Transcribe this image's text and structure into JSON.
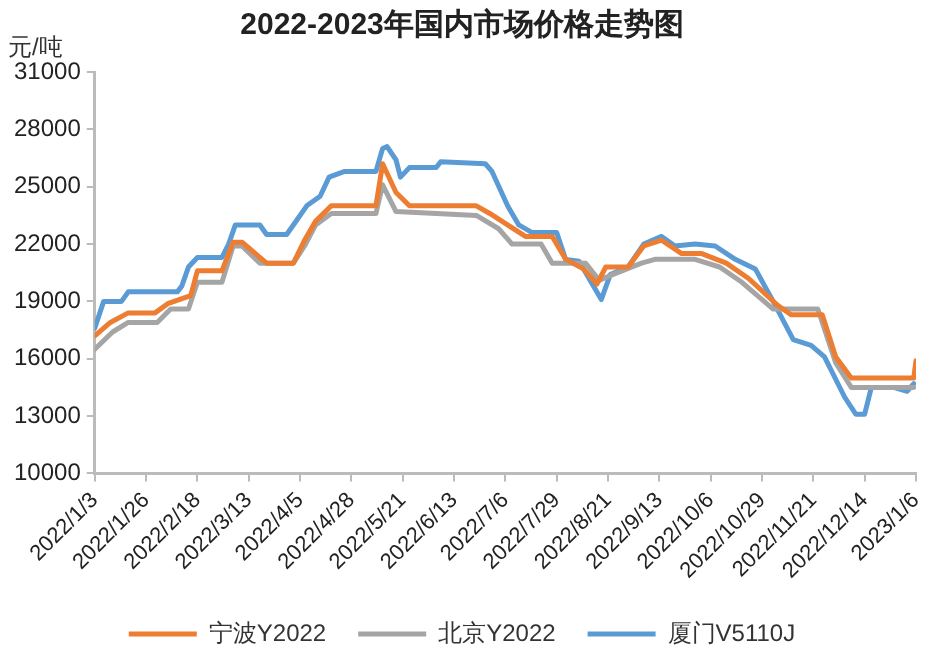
{
  "chart_data": {
    "type": "line",
    "title": "2022-2023年国内市场价格走势图",
    "ylabel": "元/吨",
    "xlim": [
      "2022-01-03",
      "2023-01-06"
    ],
    "xticks": [
      {
        "value": "2022-01-03",
        "label": "2022/1/3"
      },
      {
        "value": "2022-01-26",
        "label": "2022/1/26"
      },
      {
        "value": "2022-02-18",
        "label": "2022/2/18"
      },
      {
        "value": "2022-03-13",
        "label": "2022/3/13"
      },
      {
        "value": "2022-04-05",
        "label": "2022/4/5"
      },
      {
        "value": "2022-04-28",
        "label": "2022/4/28"
      },
      {
        "value": "2022-05-21",
        "label": "2022/5/21"
      },
      {
        "value": "2022-06-13",
        "label": "2022/6/13"
      },
      {
        "value": "2022-07-06",
        "label": "2022/7/6"
      },
      {
        "value": "2022-07-29",
        "label": "2022/7/29"
      },
      {
        "value": "2022-08-21",
        "label": "2022/8/21"
      },
      {
        "value": "2022-09-13",
        "label": "2022/9/13"
      },
      {
        "value": "2022-10-06",
        "label": "2022/10/6"
      },
      {
        "value": "2022-10-29",
        "label": "2022/10/29"
      },
      {
        "value": "2022-11-21",
        "label": "2022/11/21"
      },
      {
        "value": "2022-12-14",
        "label": "2022/12/14"
      },
      {
        "value": "2023-01-06",
        "label": "2023/1/6"
      }
    ],
    "ylim": [
      10000,
      31000
    ],
    "yticks": [
      10000,
      13000,
      16000,
      19000,
      22000,
      25000,
      28000,
      31000
    ],
    "grid": false,
    "legend": "bottom",
    "marker": "none",
    "line_style": "solid",
    "series": [
      {
        "name": "宁波Y2022",
        "color": "#ed7d31",
        "x": [
          "2022-01-03",
          "2022-01-10",
          "2022-01-18",
          "2022-01-30",
          "2022-02-05",
          "2022-02-15",
          "2022-02-18",
          "2022-03-01",
          "2022-03-06",
          "2022-03-10",
          "2022-03-16",
          "2022-03-21",
          "2022-04-02",
          "2022-04-07",
          "2022-04-12",
          "2022-04-19",
          "2022-05-09",
          "2022-05-12",
          "2022-05-18",
          "2022-05-24",
          "2022-06-23",
          "2022-06-29",
          "2022-07-07",
          "2022-07-15",
          "2022-07-27",
          "2022-08-02",
          "2022-08-10",
          "2022-08-16",
          "2022-08-20",
          "2022-08-30",
          "2022-09-06",
          "2022-09-14",
          "2022-09-23",
          "2022-10-02",
          "2022-10-13",
          "2022-10-23",
          "2022-11-05",
          "2022-11-11",
          "2022-11-25",
          "2022-12-01",
          "2022-12-08",
          "2023-01-05",
          "2023-01-06"
        ],
        "values": [
          17200,
          17900,
          18400,
          18400,
          18900,
          19300,
          20600,
          20600,
          22100,
          22100,
          21500,
          21000,
          21000,
          22200,
          23200,
          24000,
          24000,
          26200,
          24700,
          24000,
          24000,
          23600,
          23000,
          22400,
          22400,
          21200,
          20700,
          19900,
          20800,
          20800,
          21900,
          22200,
          21500,
          21500,
          21000,
          20200,
          18800,
          18300,
          18300,
          16100,
          15000,
          15000,
          15900
        ]
      },
      {
        "name": "北京Y2022",
        "color": "#a5a5a5",
        "x": [
          "2022-01-03",
          "2022-01-11",
          "2022-01-18",
          "2022-01-31",
          "2022-02-06",
          "2022-02-14",
          "2022-02-18",
          "2022-03-01",
          "2022-03-06",
          "2022-03-10",
          "2022-03-18",
          "2022-04-02",
          "2022-04-07",
          "2022-04-12",
          "2022-04-19",
          "2022-05-09",
          "2022-05-12",
          "2022-05-18",
          "2022-06-23",
          "2022-07-03",
          "2022-07-09",
          "2022-07-22",
          "2022-07-27",
          "2022-08-11",
          "2022-08-17",
          "2022-08-23",
          "2022-09-05",
          "2022-09-11",
          "2022-09-29",
          "2022-10-10",
          "2022-10-20",
          "2022-11-03",
          "2022-11-23",
          "2022-12-01",
          "2022-12-08",
          "2023-01-05"
        ],
        "values": [
          16500,
          17400,
          17900,
          17900,
          18600,
          18600,
          20000,
          20000,
          21900,
          21900,
          21000,
          21000,
          21900,
          23000,
          23600,
          23600,
          25100,
          23700,
          23500,
          22800,
          22000,
          22000,
          21000,
          21000,
          20100,
          20400,
          21000,
          21200,
          21200,
          20800,
          20000,
          18600,
          18600,
          15800,
          14500,
          14500
        ]
      },
      {
        "name": "厦门V5110J",
        "color": "#5b9bd5",
        "x": [
          "2022-01-03",
          "2022-01-07",
          "2022-01-15",
          "2022-01-18",
          "2022-02-09",
          "2022-02-11",
          "2022-02-14",
          "2022-02-18",
          "2022-03-01",
          "2022-03-04",
          "2022-03-07",
          "2022-03-18",
          "2022-03-21",
          "2022-03-30",
          "2022-04-02",
          "2022-04-08",
          "2022-04-14",
          "2022-04-18",
          "2022-04-25",
          "2022-05-09",
          "2022-05-12",
          "2022-05-14",
          "2022-05-18",
          "2022-05-20",
          "2022-05-24",
          "2022-06-05",
          "2022-06-07",
          "2022-06-27",
          "2022-06-30",
          "2022-07-07",
          "2022-07-12",
          "2022-07-18",
          "2022-07-29",
          "2022-08-02",
          "2022-08-08",
          "2022-08-14",
          "2022-08-18",
          "2022-08-22",
          "2022-08-30",
          "2022-09-06",
          "2022-09-14",
          "2022-09-20",
          "2022-09-29",
          "2022-10-08",
          "2022-10-17",
          "2022-10-26",
          "2022-11-03",
          "2022-11-12",
          "2022-11-20",
          "2022-11-26",
          "2022-12-05",
          "2022-12-10",
          "2022-12-14",
          "2022-12-17",
          "2022-12-27",
          "2023-01-02",
          "2023-01-05"
        ],
        "values": [
          17600,
          19000,
          19000,
          19500,
          19500,
          19800,
          20800,
          21300,
          21300,
          22000,
          23000,
          23000,
          22500,
          22500,
          23000,
          24000,
          24500,
          25500,
          25800,
          25800,
          27000,
          27100,
          26400,
          25500,
          26000,
          26000,
          26300,
          26200,
          25800,
          24000,
          23000,
          22600,
          22600,
          21200,
          21100,
          19900,
          19100,
          20400,
          20800,
          22000,
          22400,
          21900,
          22000,
          21900,
          21200,
          20700,
          19000,
          17000,
          16700,
          16100,
          14000,
          13100,
          13100,
          14500,
          14500,
          14300,
          14700
        ]
      }
    ]
  }
}
